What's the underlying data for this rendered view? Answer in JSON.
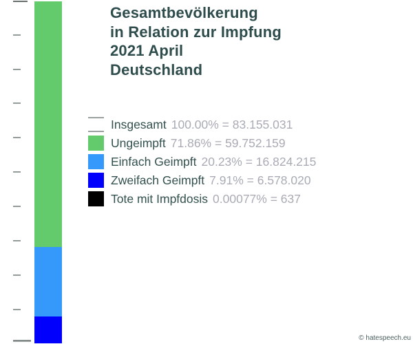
{
  "page": {
    "background": "#ffffff",
    "footer_credit": "© hatespeech.eu"
  },
  "title": {
    "lines": [
      "Gesamtbevölkerung",
      "in Relation zur Impfung",
      "2021 April",
      "Deutschland"
    ],
    "color": "#2e4c4c"
  },
  "legend": {
    "items": [
      {
        "label": "Insgesamt",
        "value_text": "100.00% = 83.155.031",
        "swatch_type": "total-lines",
        "swatch_color": null
      },
      {
        "label": "Ungeimpft",
        "value_text": "71.86% = 59.752.159",
        "swatch_type": "fill",
        "swatch_color": "#63cb6c"
      },
      {
        "label": "Einfach Geimpft",
        "value_text": "20.23% = 16.824.215",
        "swatch_type": "fill",
        "swatch_color": "#3598fb"
      },
      {
        "label": "Zweifach Geimpft",
        "value_text": "7.91% = 6.578.020",
        "swatch_type": "fill",
        "swatch_color": "#0000fc"
      },
      {
        "label": "Tote mit Impfdosis",
        "value_text": "0.00077% = 637",
        "swatch_type": "fill",
        "swatch_color": "#000000"
      }
    ]
  },
  "chart_data": {
    "type": "bar",
    "stacked": true,
    "orientation": "vertical",
    "title": "Gesamtbevölkerung in Relation zur Impfung 2021 April Deutschland",
    "total_label": "Insgesamt",
    "total_percent": 100.0,
    "total_value": 83155031,
    "segments": [
      {
        "name": "Ungeimpft",
        "percent": 71.86,
        "value": 59752159,
        "color": "#63cb6c"
      },
      {
        "name": "Einfach Geimpft",
        "percent": 20.23,
        "value": 16824215,
        "color": "#3598fb"
      },
      {
        "name": "Zweifach Geimpft",
        "percent": 7.91,
        "value": 6578020,
        "color": "#0000fc"
      },
      {
        "name": "Tote mit Impfdosis",
        "percent": 0.00077,
        "value": 637,
        "color": "#000000"
      }
    ],
    "axis": {
      "side": "left",
      "ticks_percent": [
        100,
        90,
        80,
        70,
        60,
        50,
        40,
        30,
        20,
        10,
        0
      ],
      "range_percent": [
        0,
        100
      ],
      "grid": false,
      "tick_labels_visible": false
    },
    "legend_position": "right"
  }
}
